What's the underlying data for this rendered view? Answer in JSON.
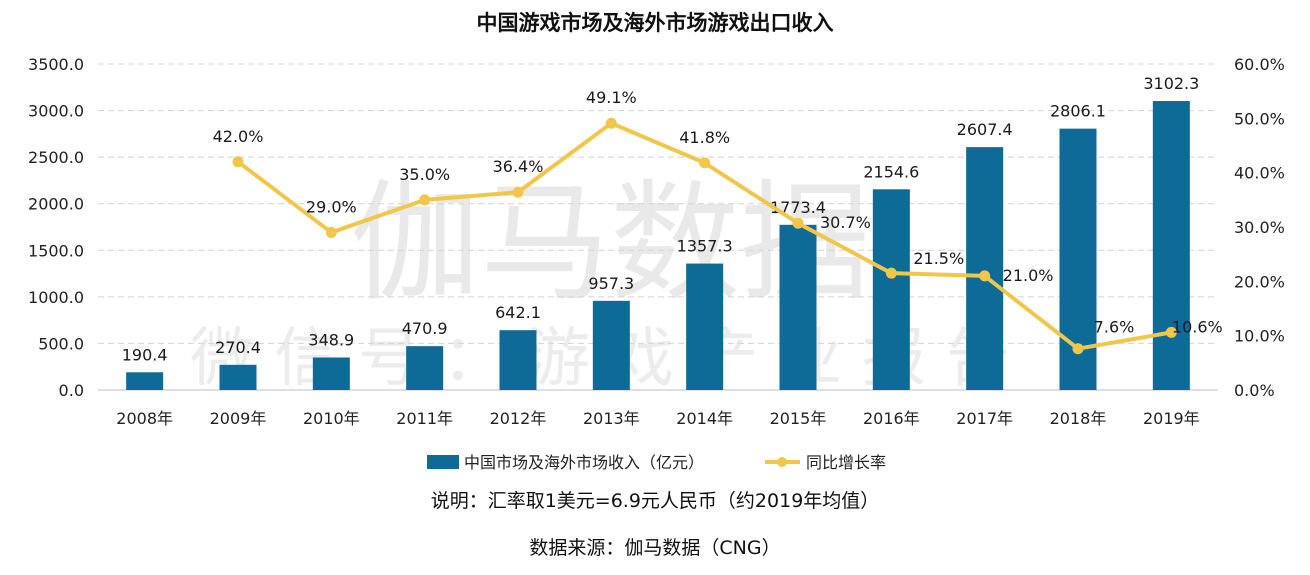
{
  "chart_data": {
    "type": "bar+line",
    "title": "中国游戏市场及海外市场游戏出口收入",
    "categories": [
      "2008年",
      "2009年",
      "2010年",
      "2011年",
      "2012年",
      "2013年",
      "2014年",
      "2015年",
      "2016年",
      "2017年",
      "2018年",
      "2019年"
    ],
    "series": [
      {
        "name": "中国市场及海外市场收入（亿元）",
        "type": "bar",
        "axis": "left",
        "color": "#0e6a96",
        "values": [
          190.4,
          270.4,
          348.9,
          470.9,
          642.1,
          957.3,
          1357.3,
          1773.4,
          2154.6,
          2607.4,
          2806.1,
          3102.3
        ],
        "labels": [
          "190.4",
          "270.4",
          "348.9",
          "470.9",
          "642.1",
          "957.3",
          "1357.3",
          "1773.4",
          "2154.6",
          "2607.4",
          "2806.1",
          "3102.3"
        ]
      },
      {
        "name": "同比增长率",
        "type": "line",
        "axis": "right",
        "color": "#f0c74a",
        "values": [
          null,
          42.0,
          29.0,
          35.0,
          36.4,
          49.1,
          41.8,
          30.7,
          21.5,
          21.0,
          7.6,
          10.6
        ],
        "labels": [
          "",
          "42.0%",
          "29.0%",
          "35.0%",
          "36.4%",
          "49.1%",
          "41.8%",
          "30.7%",
          "21.5%",
          "21.0%",
          "7.6%",
          "10.6%"
        ]
      }
    ],
    "y_left": {
      "range": [
        0,
        3500
      ],
      "ticks": [
        "0.0",
        "500.0",
        "1000.0",
        "1500.0",
        "2000.0",
        "2500.0",
        "3000.0",
        "3500.0"
      ]
    },
    "y_right": {
      "range": [
        0,
        60
      ],
      "ticks": [
        "0.0%",
        "10.0%",
        "20.0%",
        "30.0%",
        "40.0%",
        "50.0%",
        "60.0%"
      ]
    },
    "grid": true,
    "legend_position": "bottom"
  },
  "notes": {
    "explanation": "说明：汇率取1美元=6.9元人民币（约2019年均值）",
    "source": "数据来源：伽马数据（CNG）"
  },
  "watermark": {
    "main": "伽马数据",
    "sub": "微信号：游戏产业报告"
  }
}
